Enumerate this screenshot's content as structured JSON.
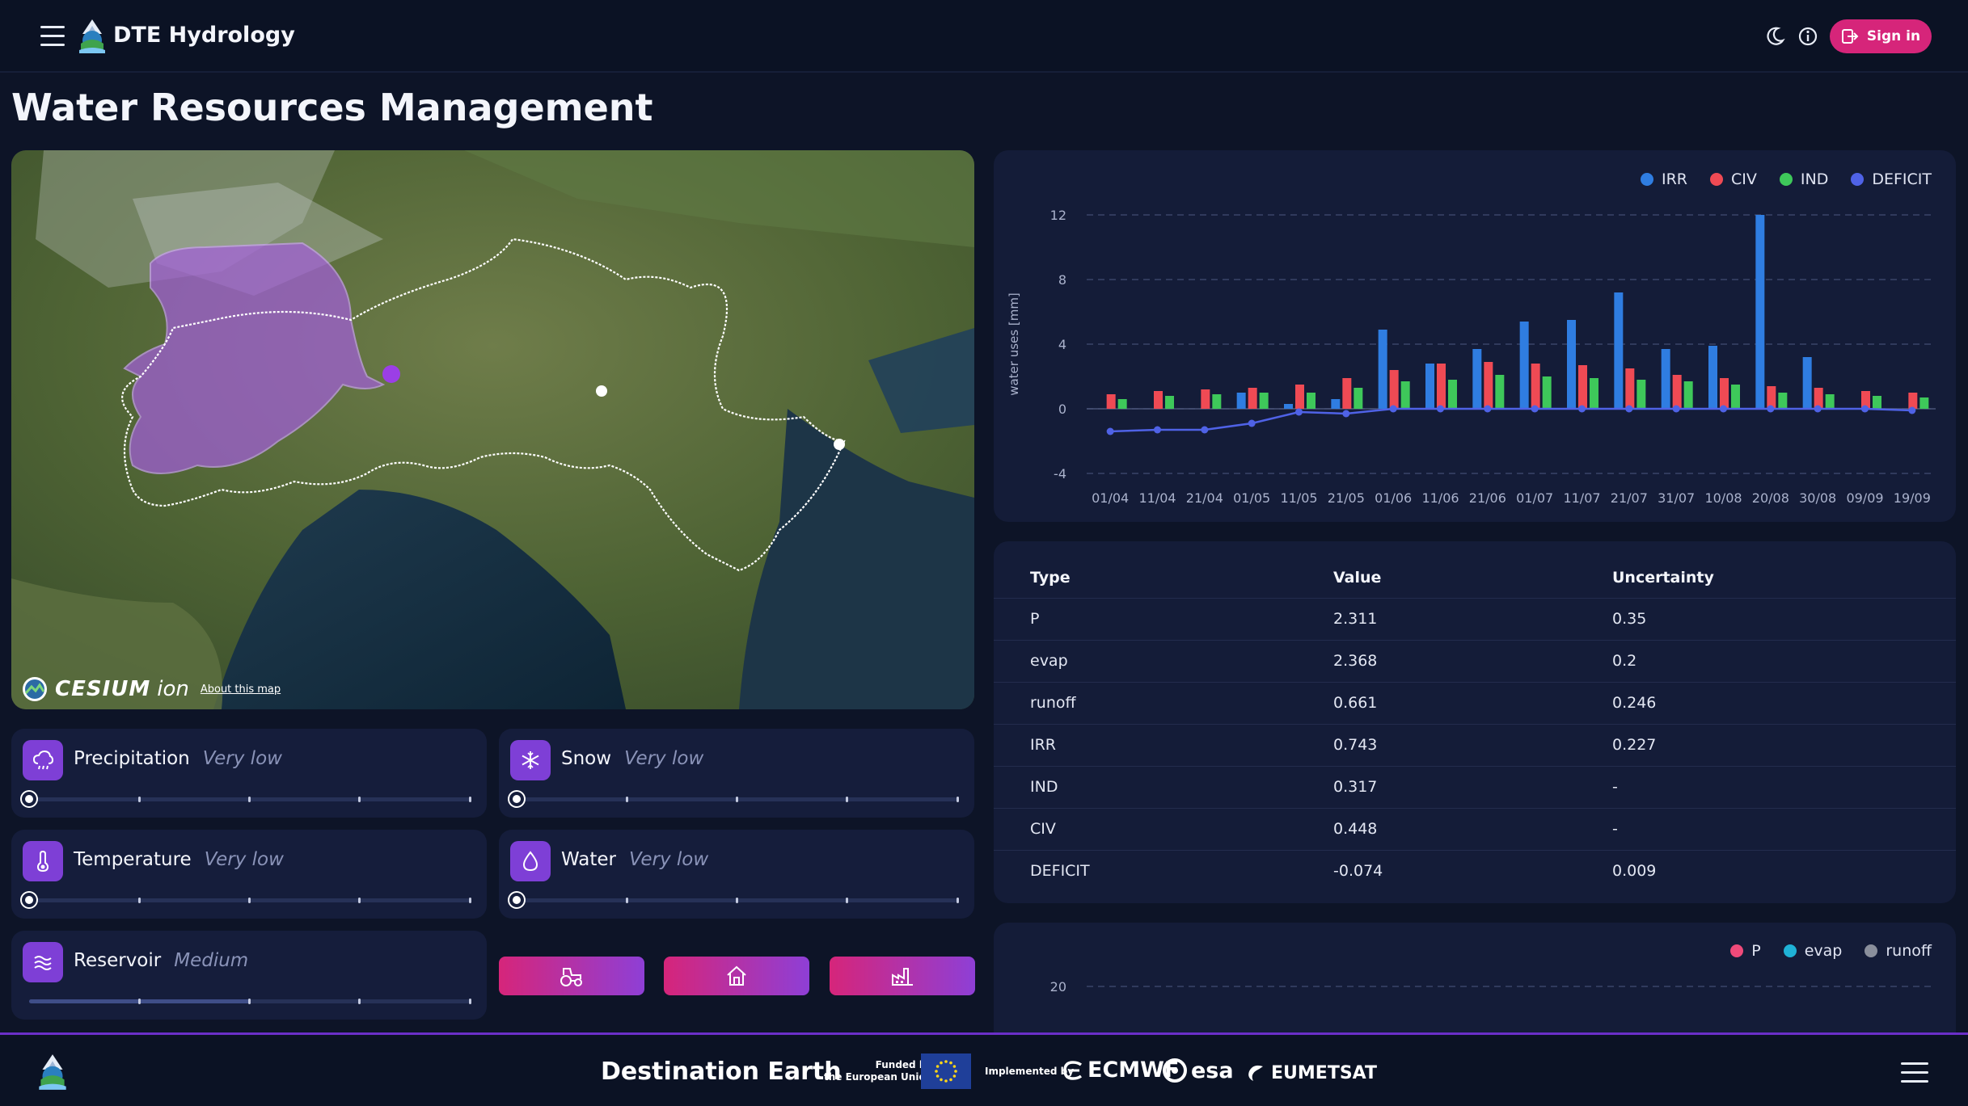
{
  "header": {
    "app_title": "DTE Hydrology",
    "signin_label": "Sign in",
    "icons": [
      "menu-icon",
      "app-logo",
      "moon-icon",
      "info-icon",
      "sign-in-icon"
    ]
  },
  "page": {
    "title": "Water Resources Management"
  },
  "map": {
    "attribution_brand": "CESIUM",
    "attribution_ion": "ion",
    "about_link": "About this map"
  },
  "indicators": [
    {
      "name": "Precipitation",
      "level": "Very low",
      "icon": "cloud-rain-icon",
      "level_index": 0
    },
    {
      "name": "Snow",
      "level": "Very low",
      "icon": "snowflake-icon",
      "level_index": 0
    },
    {
      "name": "Temperature",
      "level": "Very low",
      "icon": "thermometer-icon",
      "level_index": 0
    },
    {
      "name": "Water",
      "level": "Very low",
      "icon": "water-drop-icon",
      "level_index": 0
    },
    {
      "name": "Reservoir",
      "level": "Medium",
      "icon": "waves-icon",
      "level_index": 2
    }
  ],
  "sector_buttons": [
    {
      "icon": "tractor-icon"
    },
    {
      "icon": "home-icon"
    },
    {
      "icon": "factory-icon"
    }
  ],
  "colors": {
    "irr": "#2f7de1",
    "civ": "#ef4a54",
    "ind": "#3ec85a",
    "deficit": "#4f62e6",
    "p": "#ef4a7a",
    "evap": "#1fb2d6",
    "runoff": "#8a8f9c",
    "accent": "#d6257a"
  },
  "chart_data": [
    {
      "type": "bar",
      "ylabel": "water uses [mm]",
      "ylim": [
        -4,
        12
      ],
      "yticks": [
        -4,
        0,
        4,
        8,
        12
      ],
      "grid": true,
      "legend_position": "top-right",
      "categories": [
        "01/04",
        "11/04",
        "21/04",
        "01/05",
        "11/05",
        "21/05",
        "01/06",
        "11/06",
        "21/06",
        "01/07",
        "11/07",
        "21/07",
        "31/07",
        "10/08",
        "20/08",
        "30/08",
        "09/09",
        "19/09"
      ],
      "series": [
        {
          "name": "IRR",
          "type": "bar",
          "values": [
            0,
            0,
            0,
            1.0,
            0.3,
            0.6,
            4.9,
            2.8,
            3.7,
            5.4,
            5.5,
            7.2,
            3.7,
            3.9,
            12.0,
            3.2,
            0,
            0
          ]
        },
        {
          "name": "CIV",
          "type": "bar",
          "values": [
            0.9,
            1.1,
            1.2,
            1.3,
            1.5,
            1.9,
            2.4,
            2.8,
            2.9,
            2.8,
            2.7,
            2.5,
            2.1,
            1.9,
            1.4,
            1.3,
            1.1,
            1.0
          ]
        },
        {
          "name": "IND",
          "type": "bar",
          "values": [
            0.6,
            0.8,
            0.9,
            1.0,
            1.0,
            1.3,
            1.7,
            1.8,
            2.1,
            2.0,
            1.9,
            1.8,
            1.7,
            1.5,
            1.0,
            0.9,
            0.8,
            0.7
          ]
        },
        {
          "name": "DEFICIT",
          "type": "line",
          "values": [
            -1.4,
            -1.3,
            -1.3,
            -0.9,
            -0.2,
            -0.3,
            0,
            0,
            0,
            0,
            0,
            0,
            0,
            0,
            0,
            0,
            0,
            -0.1
          ]
        }
      ]
    },
    {
      "type": "line",
      "legend_position": "top-right",
      "yticks_visible": [
        20
      ],
      "grid": true,
      "series": [
        {
          "name": "P",
          "values": []
        },
        {
          "name": "evap",
          "values": []
        },
        {
          "name": "runoff",
          "values": []
        }
      ]
    }
  ],
  "balance_table": {
    "headers": [
      "Type",
      "Value",
      "Uncertainty"
    ],
    "rows": [
      [
        "P",
        "2.311",
        "0.35"
      ],
      [
        "evap",
        "2.368",
        "0.2"
      ],
      [
        "runoff",
        "0.661",
        "0.246"
      ],
      [
        "IRR",
        "0.743",
        "0.227"
      ],
      [
        "IND",
        "0.317",
        "-"
      ],
      [
        "CIV",
        "0.448",
        "-"
      ],
      [
        "DEFICIT",
        "-0.074",
        "0.009"
      ]
    ]
  },
  "footer": {
    "destination": "Destination Earth",
    "funded_line1": "Funded by",
    "funded_line2": "the European Union",
    "implemented": "Implemented by",
    "orgs": [
      "ECMWF",
      "esa",
      "EUMETSAT"
    ]
  }
}
